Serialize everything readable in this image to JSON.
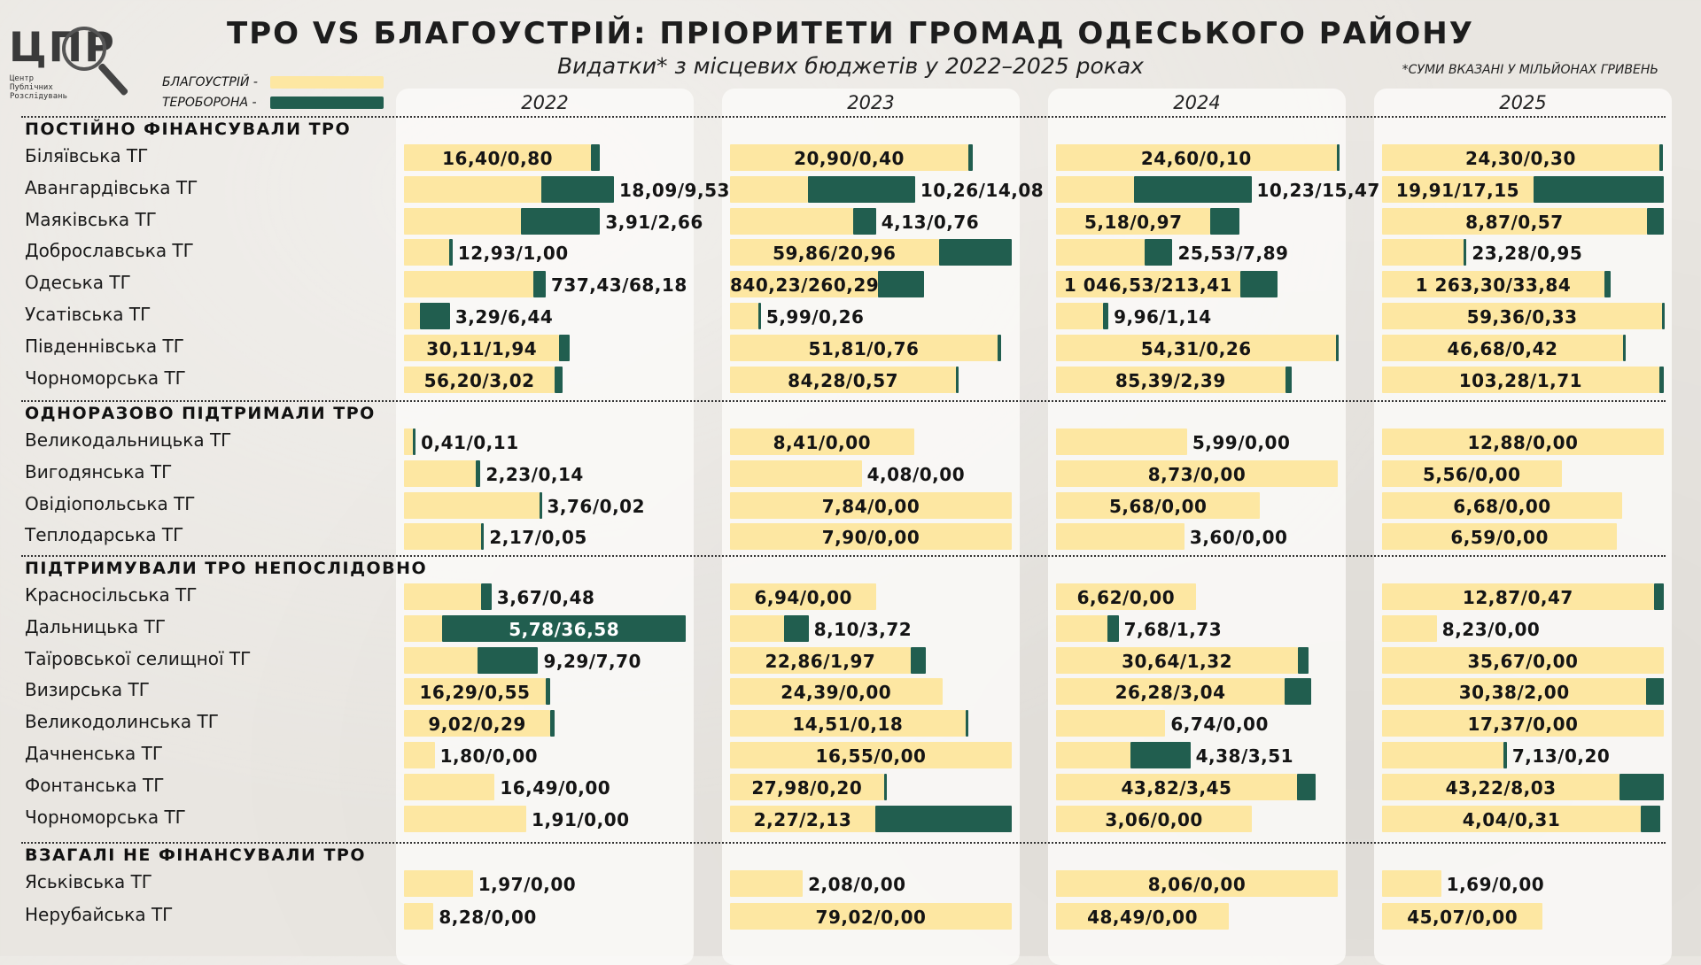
{
  "logo": {
    "text": "ЦПР",
    "sub": [
      "Центр",
      "Публічних",
      "Розслідувань"
    ]
  },
  "title": "ТРО VS БЛАГОУСТРІЙ: ПРІОРИТЕТИ ГРОМАД ОДЕСЬКОГО РАЙОНУ",
  "subtitle": "Видатки* з місцевих бюджетів у 2022–2025 роках",
  "note": "*СУМИ ВКАЗАНІ У МІЛЬЙОНАХ ГРИВЕНЬ",
  "legend": [
    {
      "label": "БЛАГОУСТРІЙ -",
      "color": "#fde7a2"
    },
    {
      "label": "ТЕРОБОРОНА -",
      "color": "#215e4f"
    }
  ],
  "chart_data": {
    "type": "bar",
    "units": "млн грн",
    "years": [
      "2022",
      "2023",
      "2024",
      "2025"
    ],
    "series": [
      {
        "name": "БЛАГОУСТРІЙ",
        "color": "#fde7a2"
      },
      {
        "name": "ТЕРОБОРОНА",
        "color": "#215e4f"
      }
    ],
    "groups": [
      {
        "title": "ПОСТІЙНО ФІНАНСУВАЛИ ТРО",
        "rows": [
          {
            "name": "Біляївська ТГ",
            "values": [
              [
                16.4,
                0.8
              ],
              [
                20.9,
                0.4
              ],
              [
                24.6,
                0.1
              ],
              [
                24.3,
                0.3
              ]
            ],
            "labels": [
              "16,40/0,80",
              "20,90/0,40",
              "24,60/0,10",
              "24,30/0,30"
            ]
          },
          {
            "name": "Авангардівська ТГ",
            "values": [
              [
                18.09,
                9.53
              ],
              [
                10.26,
                14.08
              ],
              [
                10.23,
                15.47
              ],
              [
                19.91,
                17.15
              ]
            ],
            "labels": [
              "18,09/9,53",
              "10,26/14,08",
              "10,23/15,47",
              "19,91/17,15"
            ]
          },
          {
            "name": "Маяківська ТГ",
            "values": [
              [
                3.91,
                2.66
              ],
              [
                4.13,
                0.76
              ],
              [
                5.18,
                0.97
              ],
              [
                8.87,
                0.57
              ]
            ],
            "labels": [
              "3,91/2,66",
              "4,13/0,76",
              "5,18/0,97",
              "8,87/0,57"
            ]
          },
          {
            "name": "Доброславська ТГ",
            "values": [
              [
                12.93,
                1.0
              ],
              [
                59.86,
                20.96
              ],
              [
                25.53,
                7.89
              ],
              [
                23.28,
                0.95
              ]
            ],
            "labels": [
              "12,93/1,00",
              "59,86/20,96",
              "25,53/7,89",
              "23,28/0,95"
            ]
          },
          {
            "name": "Одеська ТГ",
            "values": [
              [
                737.43,
                68.18
              ],
              [
                840.23,
                260.29
              ],
              [
                1046.53,
                213.41
              ],
              [
                1263.3,
                33.84
              ]
            ],
            "labels": [
              "737,43/68,18",
              "840,23/260,29",
              "1 046,53/213,41",
              "1 263,30/33,84"
            ]
          },
          {
            "name": "Усатівська ТГ",
            "values": [
              [
                3.29,
                6.44
              ],
              [
                5.99,
                0.26
              ],
              [
                9.96,
                1.14
              ],
              [
                59.36,
                0.33
              ]
            ],
            "labels": [
              "3,29/6,44",
              "5,99/0,26",
              "9,96/1,14",
              "59,36/0,33"
            ]
          },
          {
            "name": "Південнівська ТГ",
            "values": [
              [
                30.11,
                1.94
              ],
              [
                51.81,
                0.76
              ],
              [
                54.31,
                0.26
              ],
              [
                46.68,
                0.42
              ]
            ],
            "labels": [
              "30,11/1,94",
              "51,81/0,76",
              "54,31/0,26",
              "46,68/0,42"
            ]
          },
          {
            "name": "Чорноморська ТГ",
            "values": [
              [
                56.2,
                3.02
              ],
              [
                84.28,
                0.57
              ],
              [
                85.39,
                2.39
              ],
              [
                103.28,
                1.71
              ]
            ],
            "labels": [
              "56,20/3,02",
              "84,28/0,57",
              "85,39/2,39",
              "103,28/1,71"
            ]
          }
        ]
      },
      {
        "title": "ОДНОРАЗОВО ПІДТРИМАЛИ ТРО",
        "rows": [
          {
            "name": "Великодальницька ТГ",
            "values": [
              [
                0.41,
                0.11
              ],
              [
                8.41,
                0.0
              ],
              [
                5.99,
                0.0
              ],
              [
                12.88,
                0.0
              ]
            ],
            "labels": [
              "0,41/0,11",
              "8,41/0,00",
              "5,99/0,00",
              "12,88/0,00"
            ]
          },
          {
            "name": "Вигодянська ТГ",
            "values": [
              [
                2.23,
                0.14
              ],
              [
                4.08,
                0.0
              ],
              [
                8.73,
                0.0
              ],
              [
                5.56,
                0.0
              ]
            ],
            "labels": [
              "2,23/0,14",
              "4,08/0,00",
              "8,73/0,00",
              "5,56/0,00"
            ]
          },
          {
            "name": "Овідіопольська ТГ",
            "values": [
              [
                3.76,
                0.02
              ],
              [
                7.84,
                0.0
              ],
              [
                5.68,
                0.0
              ],
              [
                6.68,
                0.0
              ]
            ],
            "labels": [
              "3,76/0,02",
              "7,84/0,00",
              "5,68/0,00",
              "6,68/0,00"
            ]
          },
          {
            "name": "Теплодарська ТГ",
            "values": [
              [
                2.17,
                0.05
              ],
              [
                7.9,
                0.0
              ],
              [
                3.6,
                0.0
              ],
              [
                6.59,
                0.0
              ]
            ],
            "labels": [
              "2,17/0,05",
              "7,90/0,00",
              "3,60/0,00",
              "6,59/0,00"
            ]
          }
        ]
      },
      {
        "title": "ПІДТРИМУВАЛИ ТРО НЕПОСЛІДОВНО",
        "rows": [
          {
            "name": "Красносільська ТГ",
            "values": [
              [
                3.67,
                0.48
              ],
              [
                6.94,
                0.0
              ],
              [
                6.62,
                0.0
              ],
              [
                12.87,
                0.47
              ]
            ],
            "labels": [
              "3,67/0,48",
              "6,94/0,00",
              "6,62/0,00",
              "12,87/0,47"
            ]
          },
          {
            "name": "Дальницька ТГ",
            "values": [
              [
                5.78,
                36.58
              ],
              [
                8.1,
                3.72
              ],
              [
                7.68,
                1.73
              ],
              [
                8.23,
                0.0
              ]
            ],
            "labels": [
              "5,78/36,58",
              "8,10/3,72",
              "7,68/1,73",
              "8,23/0,00"
            ]
          },
          {
            "name": "Таїровської селищної ТГ",
            "values": [
              [
                9.29,
                7.7
              ],
              [
                22.86,
                1.97
              ],
              [
                30.64,
                1.32
              ],
              [
                35.67,
                0.0
              ]
            ],
            "labels": [
              "9,29/7,70",
              "22,86/1,97",
              "30,64/1,32",
              "35,67/0,00"
            ]
          },
          {
            "name": "Визирська ТГ",
            "values": [
              [
                16.29,
                0.55
              ],
              [
                24.39,
                0.0
              ],
              [
                26.28,
                3.04
              ],
              [
                30.38,
                2.0
              ]
            ],
            "labels": [
              "16,29/0,55",
              "24,39/0,00",
              "26,28/3,04",
              "30,38/2,00"
            ]
          },
          {
            "name": "Великодолинська ТГ",
            "values": [
              [
                9.02,
                0.29
              ],
              [
                14.51,
                0.18
              ],
              [
                6.74,
                0.0
              ],
              [
                17.37,
                0.0
              ]
            ],
            "labels": [
              "9,02/0,29",
              "14,51/0,18",
              "6,74/0,00",
              "17,37/0,00"
            ]
          },
          {
            "name": "Дачненська ТГ",
            "values": [
              [
                1.8,
                0.0
              ],
              [
                16.55,
                0.0
              ],
              [
                4.38,
                3.51
              ],
              [
                7.13,
                0.2
              ]
            ],
            "labels": [
              "1,80/0,00",
              "16,55/0,00",
              "4,38/3,51",
              "7,13/0,20"
            ]
          },
          {
            "name": "Фонтанська ТГ",
            "values": [
              [
                16.49,
                0.0
              ],
              [
                27.98,
                0.2
              ],
              [
                43.82,
                3.45
              ],
              [
                43.22,
                8.03
              ]
            ],
            "labels": [
              "16,49/0,00",
              "27,98/0,20",
              "43,82/3,45",
              "43,22/8,03"
            ]
          },
          {
            "name": "Чорноморська ТГ",
            "values": [
              [
                1.91,
                0.0
              ],
              [
                2.27,
                2.13
              ],
              [
                3.06,
                0.0
              ],
              [
                4.04,
                0.31
              ]
            ],
            "labels": [
              "1,91/0,00",
              "2,27/2,13",
              "3,06/0,00",
              "4,04/0,31"
            ]
          }
        ]
      },
      {
        "title": "ВЗАГАЛІ НЕ ФІНАНСУВАЛИ ТРО",
        "rows": [
          {
            "name": "Яськівська ТГ",
            "values": [
              [
                1.97,
                0.0
              ],
              [
                2.08,
                0.0
              ],
              [
                8.06,
                0.0
              ],
              [
                1.69,
                0.0
              ]
            ],
            "labels": [
              "1,97/0,00",
              "2,08/0,00",
              "8,06/0,00",
              "1,69/0,00"
            ]
          },
          {
            "name": "Нерубайська ТГ",
            "values": [
              [
                8.28,
                0.0
              ],
              [
                79.02,
                0.0
              ],
              [
                48.49,
                0.0
              ],
              [
                45.07,
                0.0
              ]
            ],
            "labels": [
              "8,28/0,00",
              "79,02/0,00",
              "48,49/0,00",
              "45,07/0,00"
            ]
          }
        ]
      }
    ]
  }
}
